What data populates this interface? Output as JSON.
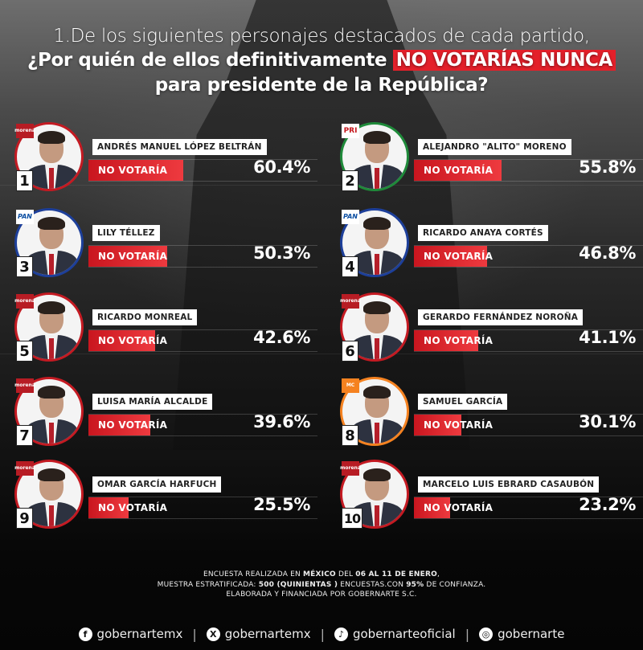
{
  "title": {
    "line1": "1.De los siguientes  personajes destacados de cada partido,",
    "line2_prefix": "¿Por quién de ellos definitivamente ",
    "line2_highlight": "NO VOTARÍAS NUNCA",
    "line3": "para presidente de la República?",
    "highlight_color": "#e4202a"
  },
  "bar_label": "NO VOTARÍA",
  "candidates": [
    {
      "rank": "1",
      "name": "ANDRÉS MANUEL LÓPEZ BELTRÁN",
      "party": "MORENA",
      "pct_label": "60.4%",
      "value": 60.4,
      "ring_color": "#c41a22"
    },
    {
      "rank": "2",
      "name": "ALEJANDRO \"ALITO\" MORENO",
      "party": "PRI",
      "pct_label": "55.8%",
      "value": 55.8,
      "ring_color": "#1f8a3a"
    },
    {
      "rank": "3",
      "name": "LILY TÉLLEZ",
      "party": "PAN",
      "pct_label": "50.3%",
      "value": 50.3,
      "ring_color": "#1d3f9a"
    },
    {
      "rank": "4",
      "name": "RICARDO ANAYA CORTÉS",
      "party": "PAN",
      "pct_label": "46.8%",
      "value": 46.8,
      "ring_color": "#1d3f9a"
    },
    {
      "rank": "5",
      "name": "RICARDO MONREAL",
      "party": "MORENA",
      "pct_label": "42.6%",
      "value": 42.6,
      "ring_color": "#c41a22"
    },
    {
      "rank": "6",
      "name": "GERARDO FERNÁNDEZ NOROÑA",
      "party": "MORENA",
      "pct_label": "41.1%",
      "value": 41.1,
      "ring_color": "#c41a22"
    },
    {
      "rank": "7",
      "name": "LUISA MARÍA ALCALDE",
      "party": "MORENA",
      "pct_label": "39.6%",
      "value": 39.6,
      "ring_color": "#c41a22"
    },
    {
      "rank": "8",
      "name": "SAMUEL GARCÍA",
      "party": "MC",
      "pct_label": "30.1%",
      "value": 30.1,
      "ring_color": "#f58220"
    },
    {
      "rank": "9",
      "name": "OMAR GARCÍA HARFUCH",
      "party": "MORENA",
      "pct_label": "25.5%",
      "value": 25.5,
      "ring_color": "#c41a22"
    },
    {
      "rank": "10",
      "name": "MARCELO LUIS EBRARD CASAUBÓN",
      "party": "MORENA",
      "pct_label": "23.2%",
      "value": 23.2,
      "ring_color": "#c41a22"
    }
  ],
  "party_labels": {
    "MORENA": "morena",
    "PRI": "PRI",
    "PAN": "PAN",
    "MC": "MC"
  },
  "footer": {
    "line1": [
      "ENCUESTA REALIZADA EN ",
      "MÉXICO",
      " DEL ",
      "06 AL 11 DE ENERO",
      ","
    ],
    "line2": [
      "MUESTRA ESTRATIFICADA: ",
      "500 (QUINIENTAS )",
      " ENCUESTAS.CON ",
      "95%",
      " DE CONFIANZA."
    ],
    "line3": "ELABORADA Y FINANCIADA POR GOBERNARTE S.C."
  },
  "socials": [
    {
      "icon": "facebook-icon",
      "glyph": "f",
      "handle": "gobernartemx"
    },
    {
      "icon": "x-icon",
      "glyph": "X",
      "handle": "gobernartemx"
    },
    {
      "icon": "tiktok-icon",
      "glyph": "♪",
      "handle": "gobernarteoficial"
    },
    {
      "icon": "instagram-icon",
      "glyph": "◎",
      "handle": "gobernarte"
    }
  ],
  "colors": {
    "accent_red": "#e4202a",
    "bar_red": "#d8262d",
    "text": "#ffffff"
  },
  "chart_data": {
    "type": "bar",
    "title": "¿Por quién de ellos definitivamente NO VOTARÍAS NUNCA para presidente de la República?",
    "subtitle": "1.De los siguientes personajes destacados de cada partido",
    "categories": [
      "Andrés Manuel López Beltrán",
      "Alejandro \"Alito\" Moreno",
      "Lily Téllez",
      "Ricardo Anaya Cortés",
      "Ricardo Monreal",
      "Gerardo Fernández Noroña",
      "Luisa María Alcalde",
      "Samuel García",
      "Omar García Harfuch",
      "Marcelo Luis Ebrard Casaubón"
    ],
    "series": [
      {
        "name": "No votaría",
        "values": [
          60.4,
          55.8,
          50.3,
          46.8,
          42.6,
          41.1,
          39.6,
          30.1,
          25.5,
          23.2
        ]
      }
    ],
    "parties": [
      "MORENA",
      "PRI",
      "PAN",
      "PAN",
      "MORENA",
      "MORENA",
      "MORENA",
      "MC",
      "MORENA",
      "MORENA"
    ],
    "xlabel": "",
    "ylabel": "%",
    "ylim": [
      0,
      100
    ],
    "orientation": "horizontal",
    "legend": "none",
    "grid": false
  }
}
